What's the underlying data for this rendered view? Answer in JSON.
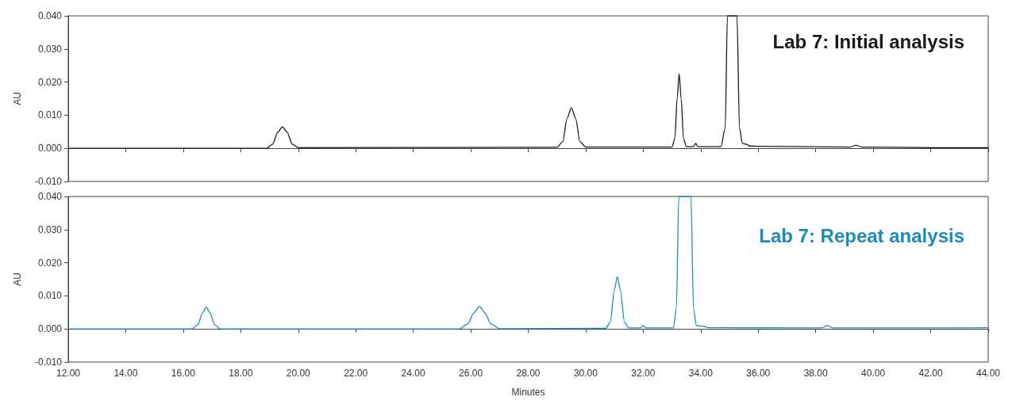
{
  "chart_data": [
    {
      "type": "line",
      "title": "Lab 7: Initial analysis",
      "ylabel": "AU",
      "tick_labels": "y",
      "marker": "none",
      "line_style": "solid",
      "xlim": [
        12,
        44
      ],
      "xticks": [
        {
          "value": 12,
          "label": null
        },
        {
          "value": 14,
          "label": null
        },
        {
          "value": 16,
          "label": null
        },
        {
          "value": 18,
          "label": null
        },
        {
          "value": 20,
          "label": null
        },
        {
          "value": 22,
          "label": null
        },
        {
          "value": 24,
          "label": null
        },
        {
          "value": 26,
          "label": null
        },
        {
          "value": 28,
          "label": null
        },
        {
          "value": 30,
          "label": null
        },
        {
          "value": 32,
          "label": null
        },
        {
          "value": 34,
          "label": null
        },
        {
          "value": 36,
          "label": null
        },
        {
          "value": 38,
          "label": null
        },
        {
          "value": 40,
          "label": null
        },
        {
          "value": 42,
          "label": null
        },
        {
          "value": 44,
          "label": null
        }
      ],
      "ylim": [
        -0.01,
        0.04
      ],
      "yticks": [
        {
          "value": -0.01,
          "label": "-0.010"
        },
        {
          "value": 0,
          "label": "0.000"
        },
        {
          "value": 0.01,
          "label": "0.010"
        },
        {
          "value": 0.02,
          "label": "0.020"
        },
        {
          "value": 0.03,
          "label": "0.030"
        },
        {
          "value": 0.04,
          "label": "0.040"
        }
      ],
      "series": [
        {
          "color": "#1a1a1a",
          "x": [
            12,
            18.9,
            19.1,
            19.3,
            19.45,
            19.6,
            19.8,
            20.0,
            29.0,
            29.2,
            29.35,
            29.5,
            29.65,
            29.8,
            30.0,
            33.0,
            33.1,
            33.18,
            33.25,
            33.32,
            33.4,
            33.5,
            33.75,
            33.82,
            33.9,
            34.7,
            34.85,
            34.93,
            35.26,
            35.35,
            35.45,
            35.6,
            35.7,
            36.0,
            39.2,
            39.4,
            39.6,
            42.0,
            44
          ],
          "values": [
            0,
            0,
            0.0012,
            0.005,
            0.0065,
            0.005,
            0.0012,
            0.0002,
            0.0003,
            0.002,
            0.009,
            0.0123,
            0.009,
            0.002,
            0.0004,
            0.0004,
            0.003,
            0.015,
            0.0225,
            0.015,
            0.003,
            0.0005,
            0.0005,
            0.0015,
            0.0005,
            0.0005,
            0.006,
            0.04,
            0.04,
            0.006,
            0.0015,
            0.0012,
            0.0007,
            0.0006,
            0.0004,
            0.0009,
            0.0004,
            0.0002,
            0.0002
          ]
        }
      ]
    },
    {
      "type": "line",
      "title": "Lab 7: Repeat analysis",
      "xlabel": "Minutes",
      "ylabel": "AU",
      "marker": "none",
      "line_style": "solid",
      "xlim": [
        12,
        44
      ],
      "xticks": [
        {
          "value": 12,
          "label": "12.00"
        },
        {
          "value": 14,
          "label": "14.00"
        },
        {
          "value": 16,
          "label": "16.00"
        },
        {
          "value": 18,
          "label": "18.00"
        },
        {
          "value": 20,
          "label": "20.00"
        },
        {
          "value": 22,
          "label": "22.00"
        },
        {
          "value": 24,
          "label": "24.00"
        },
        {
          "value": 26,
          "label": "26.00"
        },
        {
          "value": 28,
          "label": "28.00"
        },
        {
          "value": 30,
          "label": "30.00"
        },
        {
          "value": 32,
          "label": "32.00"
        },
        {
          "value": 34,
          "label": "34.00"
        },
        {
          "value": 36,
          "label": "36.00"
        },
        {
          "value": 38,
          "label": "38.00"
        },
        {
          "value": 40,
          "label": "40.00"
        },
        {
          "value": 42,
          "label": "42.00"
        },
        {
          "value": 44,
          "label": "44.00"
        }
      ],
      "ylim": [
        -0.01,
        0.04
      ],
      "yticks": [
        {
          "value": -0.01,
          "label": "-0.010"
        },
        {
          "value": 0,
          "label": "0.000"
        },
        {
          "value": 0.01,
          "label": "0.010"
        },
        {
          "value": 0.02,
          "label": "0.020"
        },
        {
          "value": 0.03,
          "label": "0.030"
        },
        {
          "value": 0.04,
          "label": "0.040"
        }
      ],
      "series": [
        {
          "color": "#1a8bc0",
          "x": [
            12,
            16.3,
            16.5,
            16.68,
            16.8,
            16.92,
            17.1,
            17.3,
            25.6,
            25.9,
            26.1,
            26.3,
            26.5,
            26.7,
            27.0,
            30.7,
            30.85,
            31.0,
            31.1,
            31.2,
            31.35,
            31.5,
            31.9,
            32.0,
            32.1,
            33.05,
            33.15,
            33.24,
            33.66,
            33.75,
            33.85,
            34.1,
            34.25,
            38.2,
            38.4,
            38.6,
            42.0,
            44
          ],
          "values": [
            0,
            0,
            0.0012,
            0.005,
            0.0066,
            0.005,
            0.0012,
            0,
            0,
            0.0015,
            0.0048,
            0.0068,
            0.0048,
            0.0015,
            0.0001,
            0.0002,
            0.002,
            0.012,
            0.0158,
            0.012,
            0.002,
            0.0003,
            0.0003,
            0.001,
            0.0003,
            0.0003,
            0.006,
            0.04,
            0.04,
            0.006,
            0.001,
            0.0008,
            0.0004,
            0.0003,
            0.001,
            0.0003,
            0.0003,
            0.0004
          ]
        }
      ]
    }
  ]
}
